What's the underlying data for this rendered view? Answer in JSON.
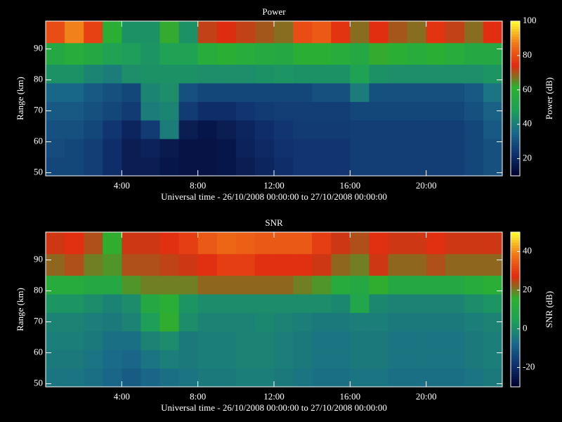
{
  "chart_data": [
    {
      "type": "heatmap",
      "title": "Power",
      "xlabel": "Universal time - 26/10/2008 00:00:00 to 27/10/2008 00:00:00",
      "ylabel": "Range (km)",
      "colorbar_label": "Power (dB)",
      "xlim": [
        0,
        24
      ],
      "xticks": [
        {
          "value": 4,
          "label": "4:00"
        },
        {
          "value": 8,
          "label": "8:00"
        },
        {
          "value": 12,
          "label": "12:00"
        },
        {
          "value": 16,
          "label": "16:00"
        },
        {
          "value": 20,
          "label": "20:00"
        }
      ],
      "ylim": [
        49,
        99
      ],
      "yticks": [
        50,
        60,
        70,
        80,
        90
      ],
      "zlim": [
        10,
        100
      ],
      "zticks": [
        20,
        40,
        60,
        80,
        100
      ],
      "colormap": [
        "#00002a",
        "#10306e",
        "#1a6a8a",
        "#1ea058",
        "#2cb030",
        "#e02a10",
        "#f07818",
        "#ffff30"
      ],
      "xbins": [
        0,
        1,
        2,
        3,
        4,
        5,
        6,
        7,
        8,
        9,
        10,
        11,
        12,
        13,
        14,
        15,
        16,
        17,
        18,
        19,
        20,
        21,
        22,
        23,
        24
      ],
      "ybins": [
        49,
        55,
        61,
        67,
        73,
        79,
        85,
        92,
        99
      ],
      "values": [
        [
          28,
          28,
          26,
          22,
          18,
          18,
          16,
          15,
          15,
          16,
          18,
          20,
          22,
          24,
          24,
          24,
          26,
          26,
          26,
          26,
          26,
          26,
          28,
          30
        ],
        [
          29,
          28,
          26,
          22,
          18,
          19,
          17,
          15,
          15,
          16,
          19,
          21,
          23,
          24,
          24,
          24,
          26,
          26,
          26,
          26,
          26,
          26,
          28,
          30
        ],
        [
          30,
          30,
          28,
          24,
          20,
          25,
          40,
          18,
          16,
          18,
          20,
          22,
          24,
          25,
          25,
          25,
          26,
          26,
          26,
          26,
          26,
          26,
          28,
          32
        ],
        [
          32,
          32,
          30,
          28,
          25,
          40,
          42,
          25,
          22,
          22,
          24,
          25,
          26,
          26,
          26,
          26,
          28,
          28,
          28,
          28,
          28,
          28,
          30,
          34
        ],
        [
          35,
          35,
          32,
          30,
          28,
          42,
          44,
          30,
          28,
          28,
          28,
          28,
          28,
          28,
          30,
          30,
          40,
          30,
          30,
          30,
          30,
          30,
          32,
          38
        ],
        [
          45,
          45,
          42,
          40,
          44,
          45,
          45,
          45,
          44,
          44,
          44,
          45,
          46,
          45,
          45,
          45,
          50,
          45,
          44,
          44,
          44,
          44,
          44,
          46
        ],
        [
          55,
          58,
          55,
          50,
          48,
          46,
          50,
          50,
          58,
          60,
          58,
          56,
          55,
          60,
          60,
          58,
          55,
          62,
          60,
          58,
          60,
          58,
          55,
          55
        ],
        [
          80,
          88,
          78,
          60,
          45,
          45,
          62,
          45,
          72,
          74,
          72,
          70,
          68,
          80,
          82,
          76,
          68,
          75,
          70,
          68,
          76,
          72,
          68,
          75
        ]
      ]
    },
    {
      "type": "heatmap",
      "title": "SNR",
      "xlabel": "Universal time - 26/10/2008 00:00:00 to 27/10/2008 00:00:00",
      "ylabel": "Range (km)",
      "colorbar_label": "SNR (dB)",
      "xlim": [
        0,
        24
      ],
      "xticks": [
        {
          "value": 4,
          "label": "4:00"
        },
        {
          "value": 8,
          "label": "8:00"
        },
        {
          "value": 12,
          "label": "12:00"
        },
        {
          "value": 16,
          "label": "16:00"
        },
        {
          "value": 20,
          "label": "20:00"
        }
      ],
      "ylim": [
        49,
        99
      ],
      "yticks": [
        50,
        60,
        70,
        80,
        90
      ],
      "zlim": [
        -30,
        50
      ],
      "zticks": [
        -20,
        0,
        20,
        40
      ],
      "colormap": [
        "#00002a",
        "#10306e",
        "#1a6a8a",
        "#1ea058",
        "#2cb030",
        "#e02a10",
        "#f07818",
        "#ffff30"
      ],
      "xbins": [
        0,
        1,
        2,
        3,
        4,
        5,
        6,
        7,
        8,
        9,
        10,
        11,
        12,
        13,
        14,
        15,
        16,
        17,
        18,
        19,
        20,
        21,
        22,
        23,
        24
      ],
      "ybins": [
        49,
        55,
        61,
        67,
        73,
        79,
        85,
        92,
        99
      ],
      "values": [
        [
          -5,
          -5,
          -6,
          -8,
          -10,
          -8,
          -6,
          -5,
          -4,
          -4,
          -3,
          -3,
          -4,
          -5,
          -6,
          -6,
          -5,
          -5,
          -6,
          -6,
          -6,
          -6,
          -5,
          -4
        ],
        [
          -4,
          -4,
          -5,
          -7,
          -8,
          -5,
          -3,
          -4,
          -3,
          -3,
          -2,
          -2,
          -3,
          -4,
          -5,
          -5,
          -4,
          -4,
          -5,
          -5,
          -5,
          -5,
          -4,
          -3
        ],
        [
          -3,
          -3,
          -4,
          -6,
          -6,
          -2,
          0,
          -4,
          -3,
          -3,
          -2,
          -2,
          -3,
          -4,
          -5,
          -5,
          -4,
          -4,
          -5,
          -5,
          -5,
          -5,
          -4,
          -3
        ],
        [
          -2,
          -2,
          -3,
          -4,
          -2,
          4,
          16,
          0,
          -2,
          -2,
          -2,
          -1,
          -2,
          -3,
          -4,
          -4,
          -3,
          -3,
          -4,
          -4,
          -4,
          -4,
          -3,
          -2
        ],
        [
          2,
          2,
          0,
          -2,
          0,
          10,
          14,
          2,
          0,
          0,
          0,
          0,
          0,
          0,
          0,
          -1,
          8,
          -1,
          -2,
          -2,
          -2,
          -2,
          0,
          2
        ],
        [
          12,
          12,
          10,
          10,
          18,
          20,
          20,
          20,
          22,
          22,
          22,
          22,
          22,
          20,
          18,
          12,
          10,
          16,
          10,
          10,
          10,
          10,
          12,
          14
        ],
        [
          22,
          24,
          20,
          18,
          24,
          24,
          25,
          26,
          28,
          30,
          30,
          28,
          28,
          28,
          26,
          22,
          20,
          26,
          22,
          22,
          24,
          22,
          22,
          22
        ],
        [
          26,
          28,
          24,
          16,
          26,
          26,
          28,
          30,
          34,
          36,
          35,
          34,
          34,
          34,
          30,
          26,
          24,
          28,
          26,
          26,
          28,
          26,
          26,
          26
        ]
      ]
    }
  ]
}
